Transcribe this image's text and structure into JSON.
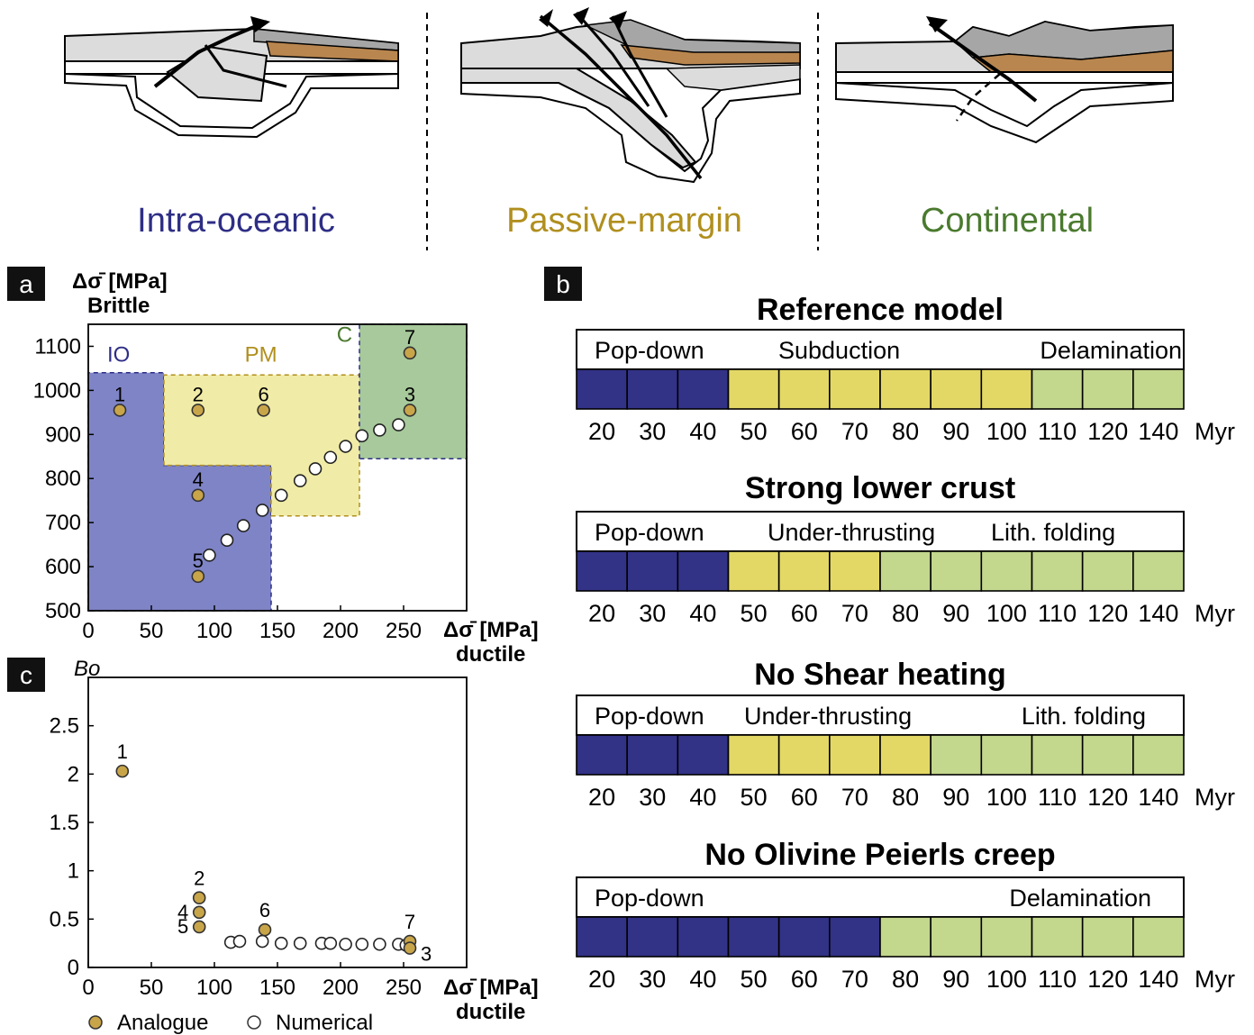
{
  "colors": {
    "io": "#2e2e86",
    "pm": "#b08f1e",
    "c": "#4a7a2e",
    "io_fill": "#7f84c6",
    "pm_fill": "#f0eba6",
    "c_fill": "#a7c99b",
    "bar_blue": "#323287",
    "bar_yellow": "#e3d865",
    "bar_green": "#c3d78d",
    "analogue": "#c9a54a",
    "brown": "#b9864f",
    "gray": "#a6a6a6",
    "lightgray": "#dcdcdc"
  },
  "top": {
    "labels": [
      "Intra-oceanic",
      "Passive-margin",
      "Continental"
    ]
  },
  "panel_a": {
    "tag": "a",
    "ylabel_line1": "Δσ̄ [MPa]",
    "ylabel_line2": "Brittle",
    "xlabel_line1": "Δσ̄ [MPa]",
    "xlabel_line2": "ductile",
    "region_labels": [
      "IO",
      "PM",
      "C"
    ]
  },
  "panel_c": {
    "tag": "c",
    "ylabel": "Bo",
    "xlabel_line1": "Δσ̄ [MPa]",
    "xlabel_line2": "ductile",
    "legend": [
      "Analogue",
      "Numerical"
    ]
  },
  "panel_b": {
    "tag": "b",
    "unit": "Myr"
  },
  "chart_data": [
    {
      "type": "scatter",
      "id": "a",
      "xlim": [
        0,
        300
      ],
      "ylim": [
        500,
        1150
      ],
      "xticks": [
        0,
        50,
        100,
        150,
        200,
        250
      ],
      "yticks": [
        500,
        600,
        700,
        800,
        900,
        1000,
        1100
      ],
      "regions": [
        {
          "name": "IO",
          "color": "#7f84c6",
          "polygon": [
            [
              0,
              500
            ],
            [
              0,
              1040
            ],
            [
              60,
              1040
            ],
            [
              60,
              830
            ],
            [
              145,
              830
            ],
            [
              145,
              500
            ]
          ]
        },
        {
          "name": "PM",
          "color": "#f0eba6",
          "polygon": [
            [
              60,
              830
            ],
            [
              60,
              1035
            ],
            [
              215,
              1035
            ],
            [
              215,
              715
            ],
            [
              145,
              715
            ],
            [
              145,
              830
            ]
          ]
        },
        {
          "name": "C",
          "color": "#a7c99b",
          "polygon": [
            [
              215,
              845
            ],
            [
              215,
              1150
            ],
            [
              300,
              1150
            ],
            [
              300,
              845
            ]
          ]
        }
      ],
      "series": [
        {
          "name": "Analogue",
          "points": [
            {
              "label": "1",
              "x": 25,
              "y": 955
            },
            {
              "label": "2",
              "x": 87,
              "y": 955
            },
            {
              "label": "6",
              "x": 139,
              "y": 955
            },
            {
              "label": "3",
              "x": 255,
              "y": 955
            },
            {
              "label": "7",
              "x": 255,
              "y": 1085
            },
            {
              "label": "4",
              "x": 87,
              "y": 762
            },
            {
              "label": "5",
              "x": 87,
              "y": 578
            }
          ]
        },
        {
          "name": "Numerical",
          "points": [
            {
              "x": 96,
              "y": 626
            },
            {
              "x": 110,
              "y": 660
            },
            {
              "x": 123,
              "y": 693
            },
            {
              "x": 138,
              "y": 728
            },
            {
              "x": 153,
              "y": 762
            },
            {
              "x": 168,
              "y": 795
            },
            {
              "x": 180,
              "y": 822
            },
            {
              "x": 192,
              "y": 848
            },
            {
              "x": 204,
              "y": 873
            },
            {
              "x": 217,
              "y": 897
            },
            {
              "x": 231,
              "y": 910
            },
            {
              "x": 246,
              "y": 922
            }
          ]
        }
      ]
    },
    {
      "type": "scatter",
      "id": "c",
      "xlim": [
        0,
        300
      ],
      "ylim": [
        0,
        3.0
      ],
      "xticks": [
        0,
        50,
        100,
        150,
        200,
        250
      ],
      "yticks": [
        0,
        0.5,
        1,
        1.5,
        2,
        2.5
      ],
      "series": [
        {
          "name": "Analogue",
          "points": [
            {
              "label": "1",
              "x": 27,
              "y": 2.03
            },
            {
              "label": "2",
              "x": 88,
              "y": 0.72
            },
            {
              "label": "4",
              "x": 88,
              "y": 0.57
            },
            {
              "label": "5",
              "x": 88,
              "y": 0.42
            },
            {
              "label": "6",
              "x": 140,
              "y": 0.39
            },
            {
              "label": "7",
              "x": 255,
              "y": 0.27
            },
            {
              "label": "3",
              "x": 255,
              "y": 0.2
            }
          ]
        },
        {
          "name": "Numerical",
          "points": [
            {
              "x": 113,
              "y": 0.26
            },
            {
              "x": 120,
              "y": 0.27
            },
            {
              "x": 138,
              "y": 0.27
            },
            {
              "x": 153,
              "y": 0.25
            },
            {
              "x": 168,
              "y": 0.25
            },
            {
              "x": 185,
              "y": 0.25
            },
            {
              "x": 192,
              "y": 0.25
            },
            {
              "x": 204,
              "y": 0.24
            },
            {
              "x": 217,
              "y": 0.24
            },
            {
              "x": 231,
              "y": 0.24
            },
            {
              "x": 246,
              "y": 0.24
            },
            {
              "x": 252,
              "y": 0.23
            }
          ]
        }
      ]
    },
    {
      "type": "table",
      "id": "b",
      "times": [
        "20",
        "30",
        "40",
        "50",
        "60",
        "70",
        "80",
        "90",
        "100",
        "110",
        "120",
        "140"
      ],
      "models": [
        {
          "title": "Reference model",
          "phases": [
            "Pop-down",
            "Subduction",
            "Delamination"
          ],
          "cells": [
            "io",
            "io",
            "io",
            "pm",
            "pm",
            "pm",
            "pm",
            "pm",
            "pm",
            "c",
            "c",
            "c"
          ]
        },
        {
          "title": "Strong lower crust",
          "phases": [
            "Pop-down",
            "Under-thrusting",
            "Lith. folding"
          ],
          "cells": [
            "io",
            "io",
            "io",
            "pm",
            "pm",
            "pm",
            "c",
            "c",
            "c",
            "c",
            "c",
            "c"
          ]
        },
        {
          "title": "No  Shear heating",
          "phases": [
            "Pop-down",
            "Under-thrusting",
            "Lith. folding"
          ],
          "cells": [
            "io",
            "io",
            "io",
            "pm",
            "pm",
            "pm",
            "pm",
            "c",
            "c",
            "c",
            "c",
            "c"
          ]
        },
        {
          "title": "No Olivine Peierls creep",
          "phases": [
            "Pop-down",
            "Delamination"
          ],
          "cells": [
            "io",
            "io",
            "io",
            "io",
            "io",
            "io",
            "c",
            "c",
            "c",
            "c",
            "c",
            "c"
          ]
        }
      ]
    }
  ]
}
